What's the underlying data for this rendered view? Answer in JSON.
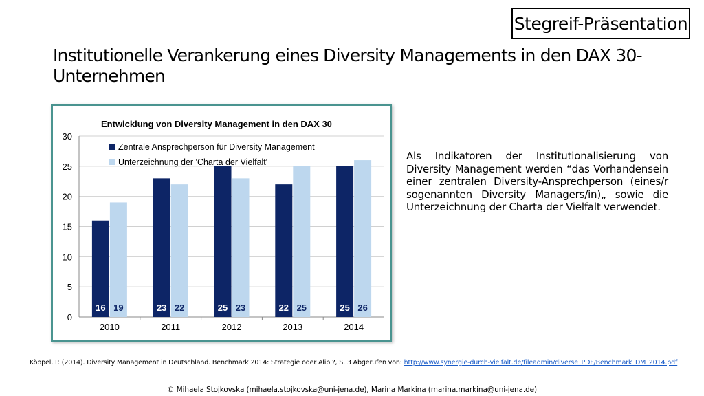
{
  "badge": {
    "label": "Stegreif-Präsentation"
  },
  "slide": {
    "title": "Institutionelle Verankerung eines Diversity Managements in den DAX 30-Unternehmen",
    "body": "Als Indikatoren der Institutionalisierung von Diversity Management werden “das Vorhandensein einer zentralen Diversity-Ansprechperson (eines/r sogenannten Diversity Managers/in)„ sowie die Unterzeichnung der Charta der Vielfalt verwendet.",
    "citation_text": "Köppel, P. (2014). Diversity Management in Deutschland. Benchmark 2014: Strategie oder Alibi?, S. 3 Abgerufen von: ",
    "citation_link": "http://www.synergie-durch-vielfalt.de/fileadmin/diverse_PDF/Benchmark_DM_2014.pdf",
    "footer": "© Mihaela Stojkovska (mihaela.stojkovska@uni-jena.de), Marina Markina (marina.markina@uni-jena.de)"
  },
  "chart_data": {
    "type": "bar",
    "title": "Entwicklung von Diversity Management in den DAX 30",
    "categories": [
      "2010",
      "2011",
      "2012",
      "2013",
      "2014"
    ],
    "series": [
      {
        "name": "Zentrale Ansprechperson für Diversity Management",
        "values": [
          16,
          23,
          25,
          22,
          25
        ],
        "color": "#0d2566"
      },
      {
        "name": "Unterzeichnung der 'Charta der Vielfalt'",
        "values": [
          19,
          22,
          23,
          25,
          26
        ],
        "color": "#bdd7ee"
      }
    ],
    "ylim": [
      0,
      30
    ],
    "yticks": [
      0,
      5,
      10,
      15,
      20,
      25,
      30
    ],
    "grid": true,
    "legend": "top-left",
    "data_labels": true
  }
}
